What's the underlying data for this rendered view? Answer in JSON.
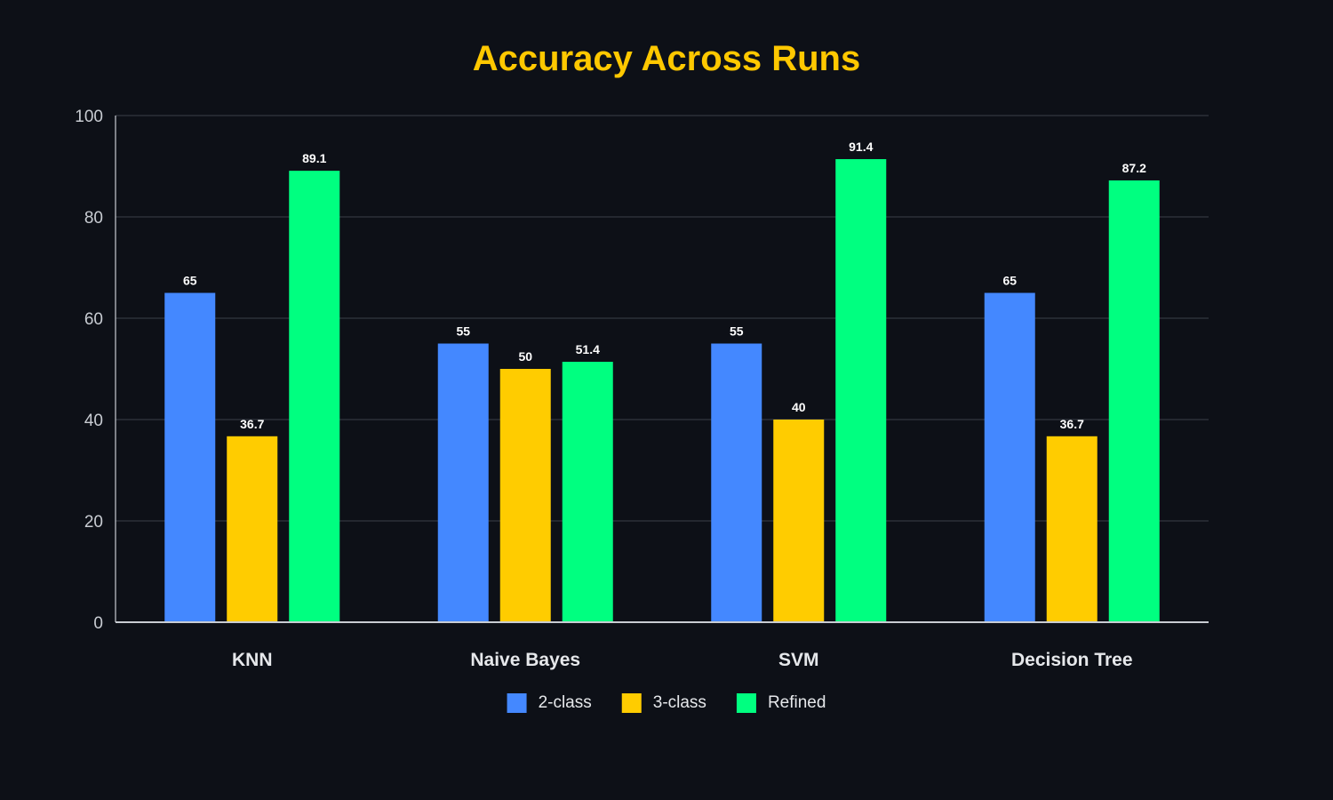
{
  "colors": {
    "background": "#0d1017",
    "title": "#ffc800",
    "axis": "#c8ccd2",
    "grid": "#3a3f48",
    "tick_label": "#c8ccd2",
    "category_label": "#e6e8eb",
    "data_label": "#ffffff",
    "legend_text": "#e6e8eb"
  },
  "chart_data": {
    "type": "bar",
    "title": "Accuracy Across Runs",
    "xlabel": "",
    "ylabel": "",
    "categories": [
      "KNN",
      "Naive Bayes",
      "SVM",
      "Decision Tree"
    ],
    "series": [
      {
        "name": "2-class",
        "color": "#4488ff",
        "values": [
          65,
          55,
          55,
          65
        ]
      },
      {
        "name": "3-class",
        "color": "#ffcc00",
        "values": [
          36.7,
          50,
          40,
          36.7
        ]
      },
      {
        "name": "Refined",
        "color": "#00ff80",
        "values": [
          89.1,
          51.4,
          91.4,
          87.2
        ]
      }
    ],
    "ylim": [
      0,
      100
    ],
    "yticks": [
      0,
      20,
      40,
      60,
      80,
      100
    ],
    "grid": true,
    "legend_position": "bottom-center",
    "data_labels": true
  }
}
